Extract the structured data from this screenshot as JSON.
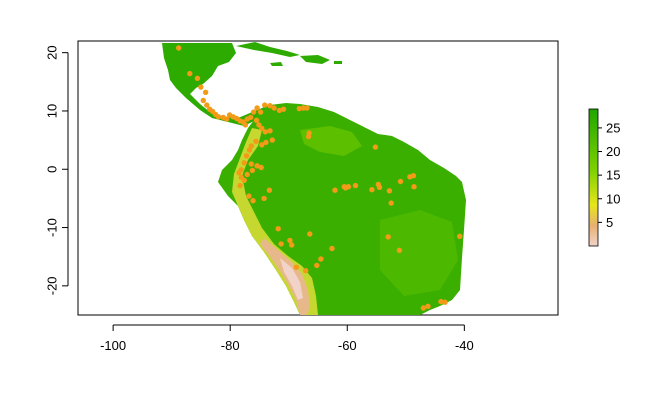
{
  "colors": {
    "land_low": "#f1d3c9",
    "land_mid": "#e6e51a",
    "land_high": "#1fa600",
    "points": "#f39a17",
    "axis": "#000000"
  },
  "map": {
    "xlim": [
      -106,
      -24
    ],
    "ylim": [
      -25,
      22
    ],
    "x_ticks": [
      -100,
      -80,
      -60,
      -40
    ],
    "y_ticks": [
      20,
      10,
      0,
      -10,
      -20
    ],
    "x_tick_labels": [
      "-100",
      "-80",
      "-60",
      "-40"
    ],
    "y_tick_labels": [
      "20",
      "10",
      "0",
      "-10",
      "-20"
    ]
  },
  "legend": {
    "range": [
      0,
      29
    ],
    "ticks": [
      5,
      10,
      15,
      20,
      25
    ],
    "tick_labels": [
      "5",
      "10",
      "15",
      "20",
      "25"
    ]
  },
  "occurrences": [
    [
      -88.8,
      20.8
    ],
    [
      -86.9,
      16.4
    ],
    [
      -85.6,
      15.6
    ],
    [
      -85.0,
      14.1
    ],
    [
      -84.2,
      13.2
    ],
    [
      -84.6,
      11.8
    ],
    [
      -84.0,
      11.0
    ],
    [
      -83.5,
      10.3
    ],
    [
      -83.0,
      9.9
    ],
    [
      -82.5,
      9.4
    ],
    [
      -82.0,
      9.0
    ],
    [
      -81.2,
      8.9
    ],
    [
      -80.6,
      8.6
    ],
    [
      -80.1,
      9.3
    ],
    [
      -79.5,
      9.0
    ],
    [
      -78.9,
      8.7
    ],
    [
      -78.3,
      8.3
    ],
    [
      -77.8,
      8.1
    ],
    [
      -77.4,
      7.6
    ],
    [
      -77.1,
      8.6
    ],
    [
      -76.5,
      8.9
    ],
    [
      -76.0,
      9.8
    ],
    [
      -75.4,
      10.5
    ],
    [
      -74.8,
      9.8
    ],
    [
      -74.1,
      11.0
    ],
    [
      -73.2,
      10.9
    ],
    [
      -72.5,
      10.5
    ],
    [
      -71.6,
      10.1
    ],
    [
      -70.9,
      10.3
    ],
    [
      -75.5,
      8.4
    ],
    [
      -75.1,
      7.6
    ],
    [
      -74.6,
      7.0
    ],
    [
      -74.0,
      6.4
    ],
    [
      -73.2,
      6.6
    ],
    [
      -72.8,
      5.0
    ],
    [
      -73.9,
      4.6
    ],
    [
      -74.6,
      4.2
    ],
    [
      -75.6,
      4.8
    ],
    [
      -76.4,
      4.0
    ],
    [
      -76.7,
      3.3
    ],
    [
      -77.2,
      2.3
    ],
    [
      -77.6,
      1.1
    ],
    [
      -78.1,
      -0.1
    ],
    [
      -78.5,
      -0.6
    ],
    [
      -78.1,
      -1.4
    ],
    [
      -77.6,
      -1.9
    ],
    [
      -78.3,
      -2.8
    ],
    [
      -77.1,
      -0.9
    ],
    [
      -76.4,
      0.9
    ],
    [
      -76.2,
      -0.2
    ],
    [
      -75.4,
      0.6
    ],
    [
      -76.8,
      -4.6
    ],
    [
      -76.1,
      -5.4
    ],
    [
      -74.7,
      0.3
    ],
    [
      -73.3,
      -3.6
    ],
    [
      -74.2,
      -5.0
    ],
    [
      -71.8,
      -10.2
    ],
    [
      -69.8,
      -12.2
    ],
    [
      -71.3,
      -12.8
    ],
    [
      -69.5,
      -13.0
    ],
    [
      -68.7,
      -16.8
    ],
    [
      -67.1,
      -17.4
    ],
    [
      -65.2,
      -16.5
    ],
    [
      -66.4,
      -11.1
    ],
    [
      -62.6,
      -13.6
    ],
    [
      -60.3,
      -3.2
    ],
    [
      -59.8,
      -3.0
    ],
    [
      -58.6,
      -2.8
    ],
    [
      -62.1,
      -3.6
    ],
    [
      -55.8,
      -3.5
    ],
    [
      -54.7,
      -2.6
    ],
    [
      -52.8,
      -3.7
    ],
    [
      -50.9,
      -2.1
    ],
    [
      -49.3,
      -1.3
    ],
    [
      -48.7,
      -1.1
    ],
    [
      -52.5,
      -5.8
    ],
    [
      -54.5,
      -3.1
    ],
    [
      -48.6,
      -3.0
    ],
    [
      -60.5,
      -3.0
    ],
    [
      -55.2,
      3.8
    ],
    [
      -66.6,
      5.6
    ],
    [
      -68.2,
      10.4
    ],
    [
      -67.5,
      10.5
    ],
    [
      -66.9,
      10.5
    ],
    [
      -66.5,
      6.2
    ],
    [
      -53.0,
      -11.6
    ],
    [
      -51.1,
      -13.9
    ],
    [
      -40.8,
      -11.5
    ],
    [
      -46.2,
      -23.5
    ],
    [
      -47.0,
      -23.8
    ],
    [
      -44.0,
      -22.7
    ],
    [
      -43.3,
      -22.8
    ],
    [
      -64.5,
      -15.4
    ]
  ]
}
